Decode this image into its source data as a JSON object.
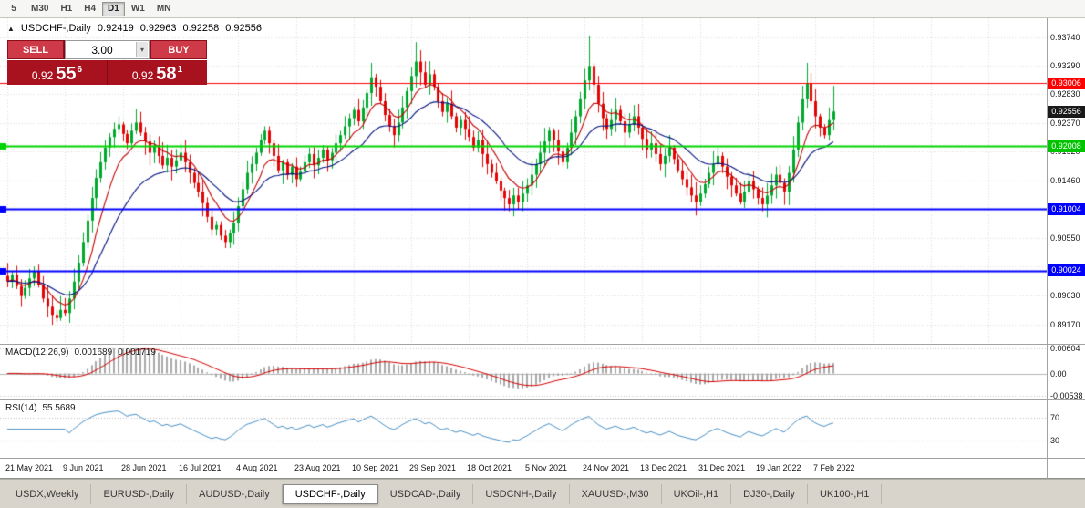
{
  "colors": {
    "up_candle": "#00a82d",
    "down_candle": "#e30505",
    "ma_fast": "#c00000",
    "ma_slow": "#00127e",
    "macd_hist": "#a9a9a9",
    "macd_signal": "#d40000",
    "rsi_line": "#4a90c4",
    "grid": "#dcdcdc"
  },
  "toolbar": {
    "timeframes": [
      "5",
      "M30",
      "H1",
      "H4",
      "D1",
      "W1",
      "MN"
    ],
    "active": "D1"
  },
  "chart_header": {
    "symbol": "USDCHF-,Daily",
    "open": "0.92419",
    "high": "0.92963",
    "low": "0.92258",
    "close": "0.92556"
  },
  "one_click": {
    "sell_label": "SELL",
    "buy_label": "BUY",
    "volume": "3.00",
    "sell_price": {
      "base": "0.92",
      "pips": "55",
      "pipette": "6"
    },
    "buy_price": {
      "base": "0.92",
      "pips": "58",
      "pipette": "1"
    }
  },
  "price_axis": {
    "labels": [
      {
        "text": "0.93740",
        "price": 0.9374
      },
      {
        "text": "0.93290",
        "price": 0.9329
      },
      {
        "text": "0.92830",
        "price": 0.9283
      },
      {
        "text": "0.92370",
        "price": 0.9237
      },
      {
        "text": "0.91920",
        "price": 0.9192
      },
      {
        "text": "0.91460",
        "price": 0.9146
      },
      {
        "text": "0.90550",
        "price": 0.9055
      },
      {
        "text": "0.89630",
        "price": 0.8963
      },
      {
        "text": "0.89170",
        "price": 0.8917
      }
    ],
    "grid_prices": [
      0.9374,
      0.9329,
      0.9283,
      0.9237,
      0.9192,
      0.9146,
      0.9101,
      0.9055,
      0.9009,
      0.8963,
      0.8917
    ],
    "badges": [
      {
        "text": "0.93006",
        "price": 0.93006,
        "bg": "#ff0000"
      },
      {
        "text": "0.92556",
        "price": 0.92556,
        "bg": "#1a1a1a"
      },
      {
        "text": "0.92008",
        "price": 0.92008,
        "bg": "#00c400"
      },
      {
        "text": "0.91004",
        "price": 0.91004,
        "bg": "#0000ff"
      },
      {
        "text": "0.90024",
        "price": 0.90024,
        "bg": "#0000ff"
      }
    ]
  },
  "levels": [
    {
      "price": 0.93006,
      "color": "#ff0000",
      "width": 1,
      "left_marker": false
    },
    {
      "price": 0.92008,
      "color": "#00d500",
      "width": 2,
      "left_marker": true
    },
    {
      "price": 0.91004,
      "color": "#0000ff",
      "width": 2,
      "left_marker": true
    },
    {
      "price": 0.90024,
      "color": "#0000ff",
      "width": 2,
      "left_marker": true
    }
  ],
  "date_axis": {
    "ticks": [
      {
        "label": "21 May 2021",
        "index": 0
      },
      {
        "label": "9 Jun 2021",
        "index": 13
      },
      {
        "label": "28 Jun 2021",
        "index": 26
      },
      {
        "label": "16 Jul 2021",
        "index": 39
      },
      {
        "label": "4 Aug 2021",
        "index": 52
      },
      {
        "label": "23 Aug 2021",
        "index": 65
      },
      {
        "label": "10 Sep 2021",
        "index": 78
      },
      {
        "label": "29 Sep 2021",
        "index": 91
      },
      {
        "label": "18 Oct 2021",
        "index": 104
      },
      {
        "label": "5 Nov 2021",
        "index": 117
      },
      {
        "label": "24 Nov 2021",
        "index": 130
      },
      {
        "label": "13 Dec 2021",
        "index": 143
      },
      {
        "label": "31 Dec 2021",
        "index": 156
      },
      {
        "label": "19 Jan 2022",
        "index": 169
      },
      {
        "label": "7 Feb 2022",
        "index": 182
      }
    ]
  },
  "macd_panel": {
    "title": "MACD(12,26,9)",
    "value": "0.001689",
    "signal_value": "0.001719",
    "axis_max": "0.00604",
    "axis_zero": "0.00",
    "axis_min": "-0.00538"
  },
  "rsi_panel": {
    "title": "RSI(14)",
    "value": "55.5689",
    "level_high": "70",
    "level_low": "30"
  },
  "tabs": [
    {
      "label": "USDX,Weekly",
      "active": false
    },
    {
      "label": "EURUSD-,Daily",
      "active": false
    },
    {
      "label": "AUDUSD-,Daily",
      "active": false
    },
    {
      "label": "USDCHF-,Daily",
      "active": true
    },
    {
      "label": "USDCAD-,Daily",
      "active": false
    },
    {
      "label": "USDCNH-,Daily",
      "active": false
    },
    {
      "label": "XAUUSD-,M30",
      "active": false
    },
    {
      "label": "UKOil-,H1",
      "active": false
    },
    {
      "label": "DJ30-,Daily",
      "active": false
    },
    {
      "label": "UK100-,H1",
      "active": false
    }
  ],
  "chart_data": {
    "type": "candlestick",
    "symbol": "USDCHF-",
    "timeframe": "Daily",
    "price_range": [
      0.8886,
      0.9404
    ],
    "horizontal_levels": [
      0.93006,
      0.92008,
      0.91004,
      0.90024
    ],
    "last_candle": {
      "open": 0.92419,
      "high": 0.92963,
      "low": 0.92258,
      "close": 0.92556
    },
    "spike_highs": {
      "82": 0.9333,
      "92": 0.9366,
      "131": 0.9376,
      "180": 0.9333
    },
    "spike_lows": {
      "11": 0.8921,
      "113": 0.9097
    },
    "closes": [
      0.8985,
      0.8996,
      0.8978,
      0.8962,
      0.8975,
      0.899,
      0.9002,
      0.898,
      0.8958,
      0.8945,
      0.8932,
      0.8927,
      0.894,
      0.8935,
      0.8958,
      0.8985,
      0.9015,
      0.9048,
      0.9082,
      0.9118,
      0.915,
      0.9175,
      0.9198,
      0.9215,
      0.9228,
      0.9235,
      0.922,
      0.9205,
      0.9225,
      0.9238,
      0.9222,
      0.9208,
      0.919,
      0.9202,
      0.9185,
      0.917,
      0.9182,
      0.9168,
      0.9178,
      0.919,
      0.9175,
      0.9158,
      0.9142,
      0.9128,
      0.911,
      0.9088,
      0.9068,
      0.9075,
      0.9058,
      0.9048,
      0.9062,
      0.9078,
      0.9105,
      0.9132,
      0.9158,
      0.9172,
      0.919,
      0.921,
      0.9225,
      0.9205,
      0.9185,
      0.9162,
      0.9175,
      0.9155,
      0.9168,
      0.9148,
      0.916,
      0.9175,
      0.9188,
      0.917,
      0.9182,
      0.9195,
      0.9178,
      0.919,
      0.9205,
      0.9218,
      0.9232,
      0.9245,
      0.9258,
      0.924,
      0.9262,
      0.9285,
      0.931,
      0.9295,
      0.9272,
      0.925,
      0.9232,
      0.9218,
      0.9238,
      0.9262,
      0.9288,
      0.9312,
      0.9335,
      0.9318,
      0.9298,
      0.9315,
      0.9295,
      0.9272,
      0.9255,
      0.9268,
      0.9248,
      0.923,
      0.9242,
      0.9228,
      0.9215,
      0.9198,
      0.921,
      0.9188,
      0.9172,
      0.9158,
      0.9145,
      0.913,
      0.9118,
      0.9108,
      0.9122,
      0.9112,
      0.9125,
      0.9138,
      0.9155,
      0.9172,
      0.919,
      0.9208,
      0.9225,
      0.921,
      0.9192,
      0.9175,
      0.9198,
      0.9222,
      0.9248,
      0.9275,
      0.9305,
      0.9328,
      0.9298,
      0.9268,
      0.9245,
      0.9228,
      0.9242,
      0.9258,
      0.924,
      0.9222,
      0.9235,
      0.9248,
      0.923,
      0.9212,
      0.9195,
      0.9205,
      0.9188,
      0.9172,
      0.9185,
      0.9198,
      0.918,
      0.9162,
      0.9148,
      0.9135,
      0.9122,
      0.9112,
      0.9125,
      0.914,
      0.9158,
      0.9172,
      0.9185,
      0.9168,
      0.9152,
      0.9138,
      0.9125,
      0.9112,
      0.9128,
      0.9145,
      0.9132,
      0.9118,
      0.9108,
      0.9122,
      0.9138,
      0.9155,
      0.9142,
      0.9128,
      0.9158,
      0.9195,
      0.9238,
      0.9275,
      0.93,
      0.9272,
      0.9248,
      0.923,
      0.9218,
      0.92419,
      0.92556
    ]
  }
}
